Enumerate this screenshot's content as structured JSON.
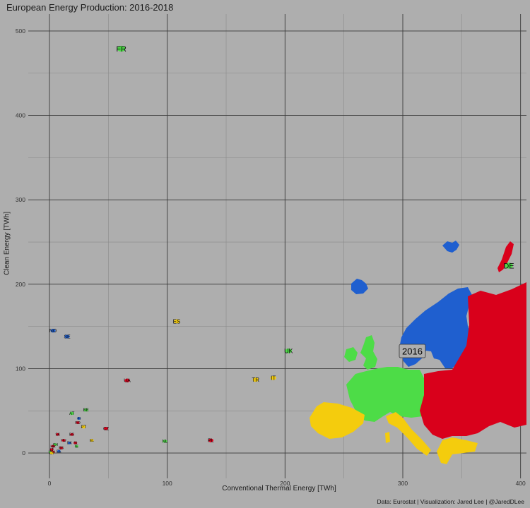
{
  "chart_data": {
    "type": "scatter",
    "title": "European Energy Production: 2016-2018",
    "xlabel": "Conventional Thermal Energy [TWh]",
    "ylabel": "Clean Energy [TWh]",
    "caption": "Data: Eurostat | Visualization: Jared Lee | @JaredDLee",
    "year_label": "2016",
    "xlim": [
      -18,
      405
    ],
    "ylim": [
      -30,
      520
    ],
    "x_ticks": [
      0,
      100,
      200,
      300,
      400
    ],
    "y_ticks": [
      0,
      100,
      200,
      300,
      400,
      500
    ],
    "grid": true,
    "colors": {
      "blue": "#1f5fcf",
      "red": "#d9001b",
      "green": "#4ddc47",
      "yellow": "#f4cc0d",
      "background": "#aeaeae",
      "grid_major": "#3a3a3a",
      "grid_minor": "#8a8a8a"
    },
    "points": [
      {
        "code": "FR",
        "x": 61,
        "y": 479,
        "group": "green",
        "size": 11
      },
      {
        "code": "DE",
        "x": 390,
        "y": 222,
        "group": "green",
        "size": 11
      },
      {
        "code": "ES",
        "x": 108,
        "y": 156,
        "group": "yellow",
        "size": 8
      },
      {
        "code": "NO",
        "x": 3,
        "y": 145,
        "group": "blue",
        "size": 7
      },
      {
        "code": "SE",
        "x": 15,
        "y": 138,
        "group": "blue",
        "size": 7
      },
      {
        "code": "UK",
        "x": 203,
        "y": 121,
        "group": "green",
        "size": 9
      },
      {
        "code": "IT",
        "x": 190,
        "y": 89,
        "group": "yellow",
        "size": 8
      },
      {
        "code": "TR",
        "x": 175,
        "y": 87,
        "group": "yellow",
        "size": 8
      },
      {
        "code": "UA",
        "x": 66,
        "y": 86,
        "group": "red",
        "size": 7
      },
      {
        "code": "BE",
        "x": 31,
        "y": 51,
        "group": "green",
        "size": 6
      },
      {
        "code": "AT",
        "x": 19,
        "y": 47,
        "group": "green",
        "size": 6
      },
      {
        "code": "FI",
        "x": 25,
        "y": 41,
        "group": "blue",
        "size": 5
      },
      {
        "code": "RO",
        "x": 24,
        "y": 36,
        "group": "red",
        "size": 5
      },
      {
        "code": "PT",
        "x": 29,
        "y": 31,
        "group": "yellow",
        "size": 6
      },
      {
        "code": "CZ",
        "x": 48,
        "y": 29,
        "group": "red",
        "size": 6
      },
      {
        "code": "BG",
        "x": 19,
        "y": 22,
        "group": "red",
        "size": 5
      },
      {
        "code": "SK",
        "x": 7,
        "y": 22,
        "group": "red",
        "size": 5
      },
      {
        "code": "EL",
        "x": 36,
        "y": 15,
        "group": "yellow",
        "size": 5
      },
      {
        "code": "NL",
        "x": 98,
        "y": 14,
        "group": "green",
        "size": 6
      },
      {
        "code": "PL",
        "x": 137,
        "y": 15,
        "group": "red",
        "size": 7
      },
      {
        "code": "HU",
        "x": 12,
        "y": 15,
        "group": "red",
        "size": 5
      },
      {
        "code": "DK",
        "x": 17,
        "y": 12,
        "group": "blue",
        "size": 5
      },
      {
        "code": "SI",
        "x": 22,
        "y": 12,
        "group": "red",
        "size": 5
      },
      {
        "code": "CH",
        "x": 5,
        "y": 10,
        "group": "green",
        "size": 5
      },
      {
        "code": "HR",
        "x": 3,
        "y": 8,
        "group": "red",
        "size": 5
      },
      {
        "code": "IE",
        "x": 23,
        "y": 8,
        "group": "green",
        "size": 5
      },
      {
        "code": "RS",
        "x": 10,
        "y": 6,
        "group": "red",
        "size": 5
      },
      {
        "code": "LT",
        "x": 2,
        "y": 4,
        "group": "red",
        "size": 5
      },
      {
        "code": "EE",
        "x": 8,
        "y": 2,
        "group": "blue",
        "size": 5
      },
      {
        "code": "LU",
        "x": 1,
        "y": 1,
        "group": "green",
        "size": 5
      },
      {
        "code": "LV",
        "x": 3,
        "y": 1,
        "group": "red",
        "size": 5
      },
      {
        "code": "CY",
        "x": 2,
        "y": 0,
        "group": "yellow",
        "size": 5
      }
    ]
  }
}
